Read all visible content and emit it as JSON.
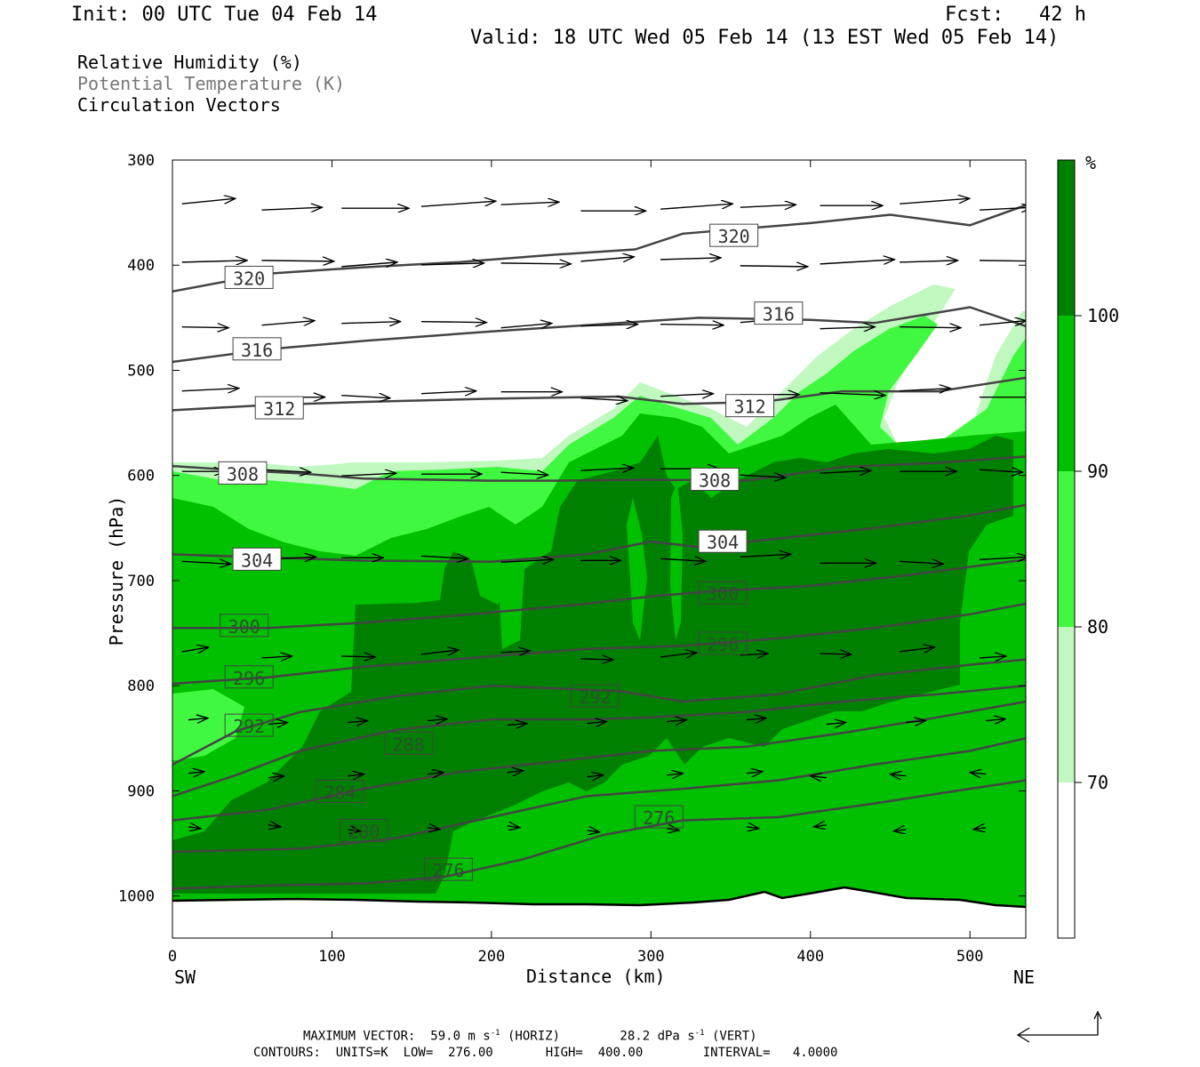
{
  "header": {
    "init": "Init: 00 UTC Tue 04 Feb 14",
    "fcst": "Fcst:   42 h",
    "valid": "Valid: 18 UTC Wed 05 Feb 14 (13 EST Wed 05 Feb 14)"
  },
  "legend": {
    "rh": "Relative Humidity (%)",
    "theta": "Potential Temperature (K)",
    "vectors": "Circulation Vectors"
  },
  "colorbar": {
    "unit": "%",
    "levels": [
      70,
      80,
      90,
      100
    ],
    "colors": [
      "#ffffff",
      "#c0f8c0",
      "#40f840",
      "#00c000",
      "#008000"
    ]
  },
  "footer": {
    "line1": "MAXIMUM VECTOR:  59.0 m s",
    "line1b": "(HORIZ)        28.2 dPa s",
    "line1c": "(VERT)",
    "line2": "CONTOURS:  UNITS=K  LOW=  276.00       HIGH=  400.00        INTERVAL=   4.0000",
    "sup": "-1"
  },
  "chart_data": {
    "type": "heatmap",
    "description_kind": "vertical cross-section",
    "xlabel": "Distance (km)",
    "ylabel": "Pressure (hPa)",
    "x_range": [
      0,
      535
    ],
    "y_range": [
      300,
      1040
    ],
    "x_ticks": [
      0,
      100,
      200,
      300,
      400,
      500
    ],
    "y_ticks": [
      300,
      400,
      500,
      600,
      700,
      800,
      900,
      1000
    ],
    "x_end_labels": {
      "left": "SW",
      "right": "NE"
    },
    "theta_contours": [
      {
        "label": "320",
        "points": [
          [
            0,
            425
          ],
          [
            60,
            408
          ],
          [
            120,
            402
          ],
          [
            180,
            397
          ],
          [
            240,
            390
          ],
          [
            290,
            385
          ],
          [
            320,
            370
          ],
          [
            400,
            360
          ],
          [
            450,
            352
          ],
          [
            500,
            362
          ],
          [
            535,
            343
          ]
        ],
        "labels_at": [
          [
            48,
            412
          ],
          [
            352,
            372
          ]
        ]
      },
      {
        "label": "316",
        "points": [
          [
            0,
            492
          ],
          [
            60,
            480
          ],
          [
            120,
            472
          ],
          [
            200,
            463
          ],
          [
            280,
            455
          ],
          [
            330,
            450
          ],
          [
            400,
            452
          ],
          [
            440,
            455
          ],
          [
            500,
            440
          ],
          [
            535,
            458
          ]
        ],
        "labels_at": [
          [
            53,
            480
          ],
          [
            380,
            446
          ]
        ]
      },
      {
        "label": "312",
        "points": [
          [
            0,
            538
          ],
          [
            60,
            533
          ],
          [
            120,
            530
          ],
          [
            200,
            527
          ],
          [
            280,
            525
          ],
          [
            320,
            532
          ],
          [
            370,
            530
          ],
          [
            420,
            520
          ],
          [
            480,
            520
          ],
          [
            535,
            507
          ]
        ],
        "labels_at": [
          [
            67,
            536
          ],
          [
            362,
            534
          ]
        ]
      },
      {
        "label": "308",
        "points": [
          [
            0,
            591
          ],
          [
            40,
            595
          ],
          [
            80,
            598
          ],
          [
            120,
            603
          ],
          [
            200,
            605
          ],
          [
            240,
            605
          ],
          [
            300,
            604
          ],
          [
            360,
            605
          ],
          [
            420,
            592
          ],
          [
            480,
            588
          ],
          [
            535,
            582
          ]
        ],
        "labels_at": [
          [
            44,
            598
          ],
          [
            340,
            604
          ]
        ]
      },
      {
        "label": "304",
        "points": [
          [
            0,
            675
          ],
          [
            60,
            678
          ],
          [
            120,
            681
          ],
          [
            200,
            682
          ],
          [
            260,
            675
          ],
          [
            300,
            663
          ],
          [
            330,
            668
          ],
          [
            380,
            660
          ],
          [
            440,
            650
          ],
          [
            500,
            638
          ],
          [
            535,
            628
          ]
        ],
        "labels_at": [
          [
            53,
            680
          ],
          [
            345,
            663
          ]
        ]
      },
      {
        "label": "300",
        "points": [
          [
            0,
            745
          ],
          [
            60,
            745
          ],
          [
            120,
            740
          ],
          [
            180,
            733
          ],
          [
            260,
            722
          ],
          [
            300,
            715
          ],
          [
            340,
            710
          ],
          [
            400,
            705
          ],
          [
            460,
            695
          ],
          [
            535,
            680
          ]
        ],
        "labels_at": [
          [
            45,
            743
          ],
          [
            345,
            712
          ]
        ]
      },
      {
        "label": "296",
        "points": [
          [
            0,
            798
          ],
          [
            60,
            792
          ],
          [
            120,
            782
          ],
          [
            200,
            772
          ],
          [
            260,
            765
          ],
          [
            320,
            762
          ],
          [
            380,
            755
          ],
          [
            440,
            745
          ],
          [
            500,
            732
          ],
          [
            535,
            722
          ]
        ],
        "labels_at": [
          [
            48,
            792
          ],
          [
            345,
            760
          ]
        ]
      },
      {
        "label": "292",
        "points": [
          [
            0,
            875
          ],
          [
            40,
            843
          ],
          [
            80,
            825
          ],
          [
            140,
            810
          ],
          [
            200,
            800
          ],
          [
            280,
            805
          ],
          [
            320,
            815
          ],
          [
            380,
            808
          ],
          [
            440,
            790
          ],
          [
            500,
            780
          ],
          [
            535,
            775
          ]
        ],
        "labels_at": [
          [
            48,
            838
          ],
          [
            265,
            810
          ]
        ]
      },
      {
        "label": "288",
        "points": [
          [
            0,
            905
          ],
          [
            40,
            885
          ],
          [
            80,
            862
          ],
          [
            140,
            842
          ],
          [
            200,
            832
          ],
          [
            260,
            832
          ],
          [
            300,
            830
          ],
          [
            360,
            825
          ],
          [
            420,
            815
          ],
          [
            480,
            808
          ],
          [
            535,
            800
          ]
        ],
        "labels_at": [
          [
            148,
            855
          ]
        ]
      },
      {
        "label": "284",
        "points": [
          [
            0,
            928
          ],
          [
            60,
            918
          ],
          [
            120,
            898
          ],
          [
            180,
            882
          ],
          [
            240,
            872
          ],
          [
            300,
            862
          ],
          [
            360,
            858
          ],
          [
            420,
            845
          ],
          [
            480,
            830
          ],
          [
            535,
            815
          ]
        ],
        "labels_at": [
          [
            105,
            901
          ]
        ]
      },
      {
        "label": "280",
        "points": [
          [
            0,
            958
          ],
          [
            80,
            955
          ],
          [
            140,
            945
          ],
          [
            200,
            925
          ],
          [
            260,
            905
          ],
          [
            320,
            898
          ],
          [
            380,
            890
          ],
          [
            440,
            875
          ],
          [
            500,
            862
          ],
          [
            535,
            850
          ]
        ],
        "labels_at": [
          [
            120,
            938
          ]
        ]
      },
      {
        "label": "276",
        "points": [
          [
            0,
            993
          ],
          [
            60,
            990
          ],
          [
            120,
            988
          ],
          [
            170,
            982
          ],
          [
            220,
            965
          ],
          [
            270,
            942
          ],
          [
            320,
            928
          ],
          [
            380,
            925
          ],
          [
            440,
            912
          ],
          [
            500,
            898
          ],
          [
            535,
            890
          ]
        ],
        "labels_at": [
          [
            173,
            975
          ],
          [
            305,
            925
          ]
        ]
      }
    ],
    "rh_fill_note": "RH >= 90-100% below ~600 hPa in SW, saturated band over center; dry (<70%) above 500 hPa",
    "surface_pressure_hpa": [
      1006,
      1005,
      1004,
      1007,
      1008,
      1006,
      1007,
      1002,
      999,
      1003,
      1011
    ]
  }
}
